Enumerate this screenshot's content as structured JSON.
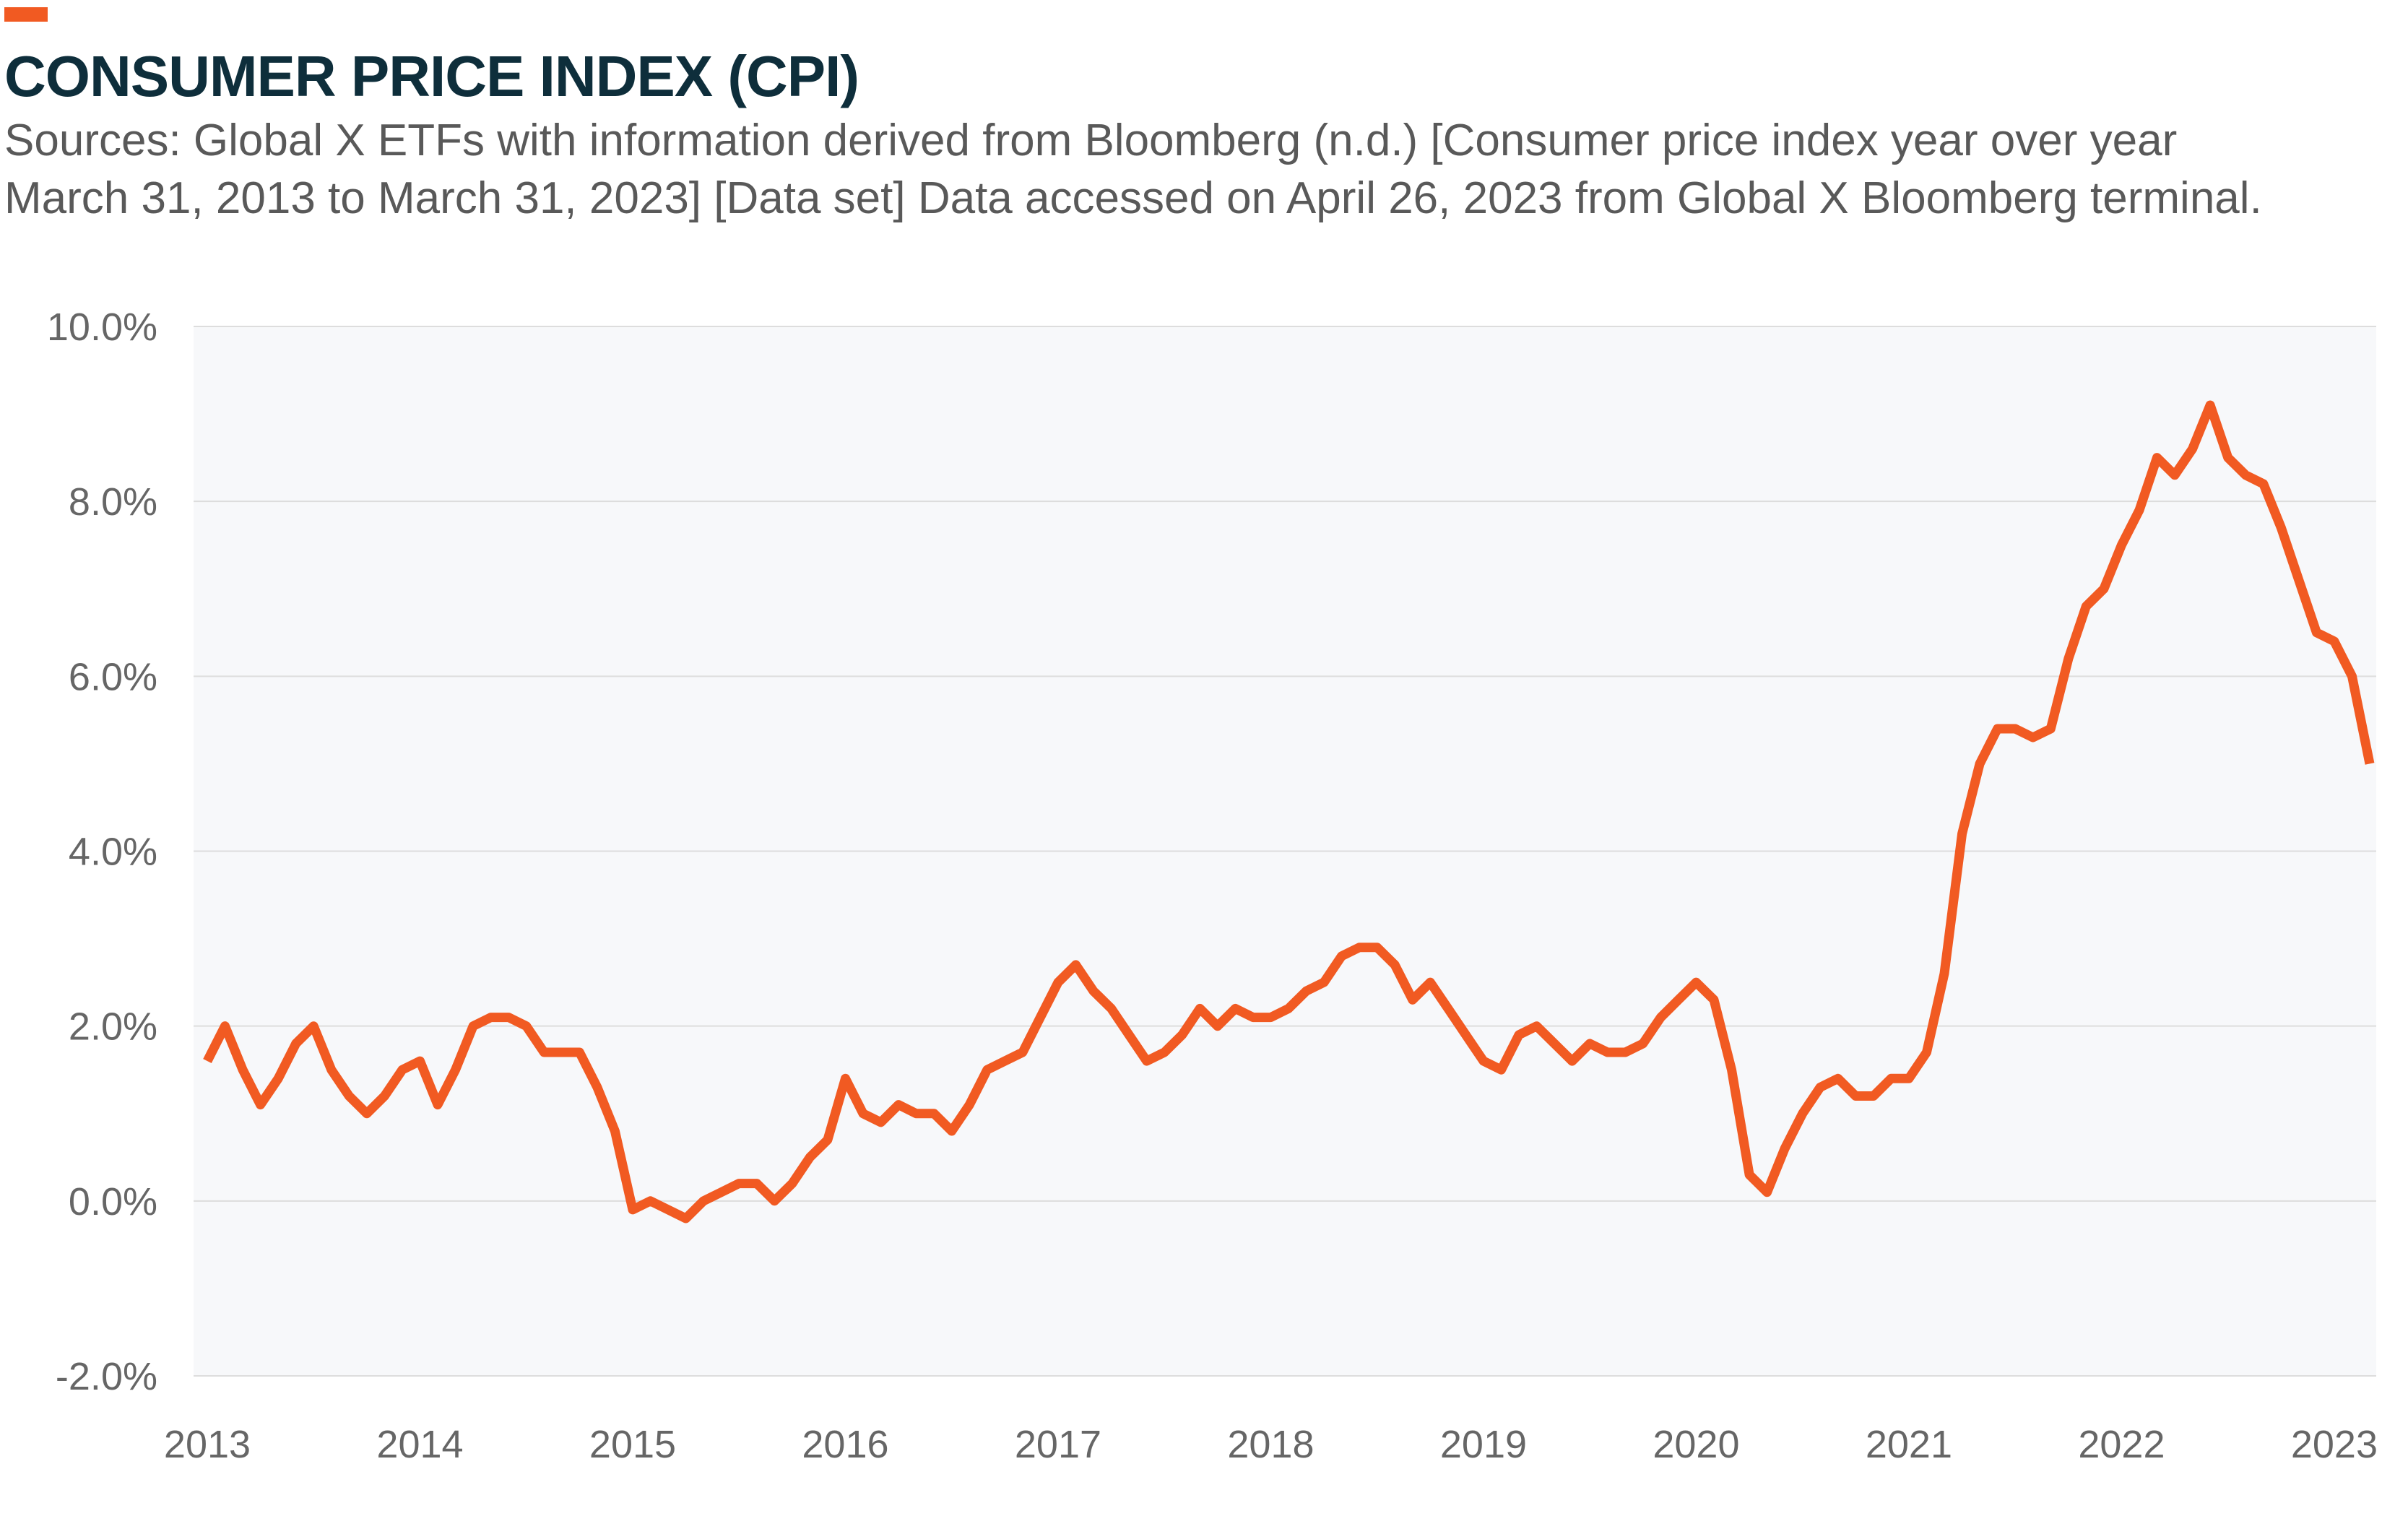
{
  "header": {
    "title": "CONSUMER PRICE INDEX (CPI)",
    "subtitle_line1": "Sources: Global X ETFs with information derived from Bloomberg (n.d.) [Consumer price index year over year",
    "subtitle_line2": "March 31, 2013 to March 31, 2023] [Data set] Data accessed on April 26, 2023 from Global X Bloomberg terminal."
  },
  "colors": {
    "accent": "#F15A22",
    "line": "#F15A22",
    "title": "#0E2E3B",
    "plot_bg": "#F7F8FA",
    "grid": "#DDDDDD"
  },
  "chart_data": {
    "type": "line",
    "title": "CONSUMER PRICE INDEX (CPI)",
    "xlabel": "",
    "ylabel": "",
    "ylim": [
      -2.0,
      10.0
    ],
    "y_ticks": [
      -2.0,
      0.0,
      2.0,
      4.0,
      6.0,
      8.0,
      10.0
    ],
    "y_tick_labels": [
      "-2.0%",
      "0.0%",
      "2.0%",
      "4.0%",
      "6.0%",
      "8.0%",
      "10.0%"
    ],
    "x_tick_labels": [
      "2013",
      "2014",
      "2015",
      "2016",
      "2017",
      "2018",
      "2019",
      "2020",
      "2021",
      "2022",
      "2023"
    ],
    "grid": true,
    "x_start": "2013-01",
    "x_end": "2023-03",
    "series": [
      {
        "values": [
          1.6,
          2.0,
          1.5,
          1.1,
          1.4,
          1.8,
          2.0,
          1.5,
          1.2,
          1.0,
          1.2,
          1.5,
          1.6,
          1.1,
          1.5,
          2.0,
          2.1,
          2.1,
          2.0,
          1.7,
          1.7,
          1.7,
          1.3,
          0.8,
          -0.1,
          0.0,
          -0.1,
          -0.2,
          0.0,
          0.1,
          0.2,
          0.2,
          0.0,
          0.2,
          0.5,
          0.7,
          1.4,
          1.0,
          0.9,
          1.1,
          1.0,
          1.0,
          0.8,
          1.1,
          1.5,
          1.6,
          1.7,
          2.1,
          2.5,
          2.7,
          2.4,
          2.2,
          1.9,
          1.6,
          1.7,
          1.9,
          2.2,
          2.0,
          2.2,
          2.1,
          2.1,
          2.2,
          2.4,
          2.5,
          2.8,
          2.9,
          2.9,
          2.7,
          2.3,
          2.5,
          2.2,
          1.9,
          1.6,
          1.5,
          1.9,
          2.0,
          1.8,
          1.6,
          1.8,
          1.7,
          1.7,
          1.8,
          2.1,
          2.3,
          2.5,
          2.3,
          1.5,
          0.3,
          0.1,
          0.6,
          1.0,
          1.3,
          1.4,
          1.2,
          1.2,
          1.4,
          1.4,
          1.7,
          2.6,
          4.2,
          5.0,
          5.4,
          5.4,
          5.3,
          5.4,
          6.2,
          6.8,
          7.0,
          7.5,
          7.9,
          8.5,
          8.3,
          8.6,
          9.1,
          8.5,
          8.3,
          8.2,
          7.7,
          7.1,
          6.5,
          6.4,
          6.0,
          5.0
        ]
      }
    ]
  }
}
